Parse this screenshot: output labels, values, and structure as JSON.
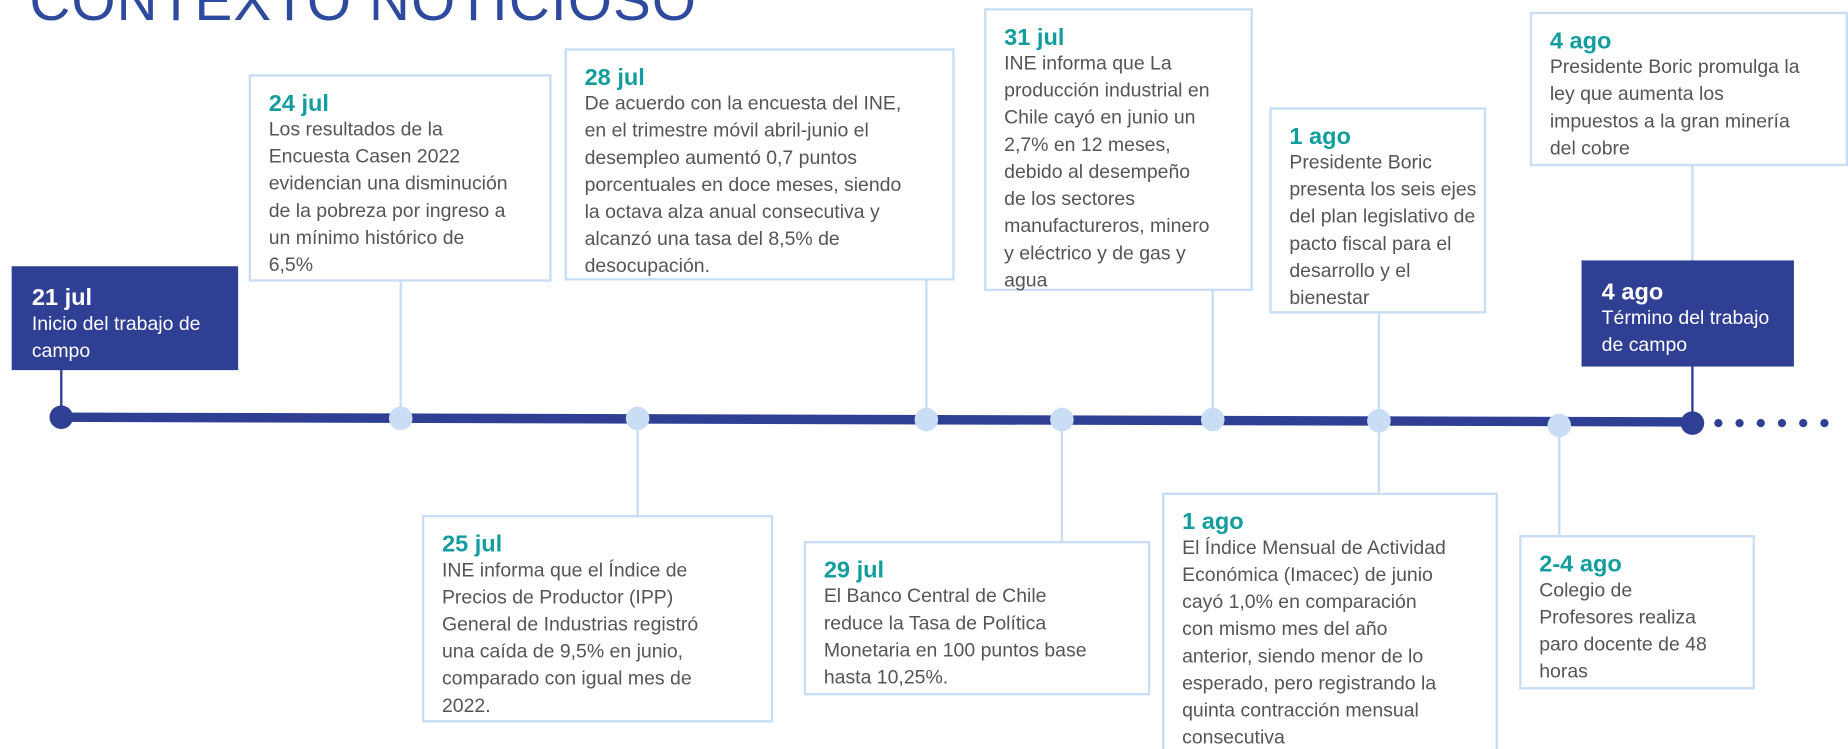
{
  "header": {
    "title": "CONTEXTO NOTICIOSO"
  },
  "events": [
    {
      "date": "21 jul",
      "lines": [
        "Inicio del trabajo de",
        "campo"
      ]
    },
    {
      "date": "24 jul",
      "lines": [
        "Los resultados de la",
        "Encuesta Casen 2022",
        "evidencian una disminución",
        "de la pobreza por ingreso a",
        "un mínimo histórico de",
        "6,5%"
      ]
    },
    {
      "date": "25 jul",
      "lines": [
        "INE informa que el Índice de",
        "Precios de Productor (IPP)",
        "General de Industrias registró",
        "una caída de 9,5% en junio,",
        "comparado con igual mes de",
        "2022."
      ]
    },
    {
      "date": "28 jul",
      "lines": [
        "De acuerdo con la encuesta del INE,",
        "en el trimestre móvil abril-junio el",
        "desempleo aumentó 0,7 puntos",
        "porcentuales en doce meses, siendo",
        "la octava alza anual consecutiva y",
        "alcanzó una tasa del 8,5% de",
        "desocupación."
      ]
    },
    {
      "date": "29 jul",
      "lines": [
        "El Banco Central de Chile",
        "reduce la Tasa de Política",
        "Monetaria en 100 puntos base",
        "hasta 10,25%."
      ]
    },
    {
      "date": "31 jul",
      "lines": [
        "INE informa que La",
        "producción industrial en",
        "Chile cayó en junio un",
        "2,7% en 12 meses,",
        "debido al desempeño",
        "de los sectores",
        "manufactureros, minero",
        "y eléctrico y de gas y",
        "agua"
      ]
    },
    {
      "date": "1 ago",
      "lines": [
        "Presidente Boric",
        "presenta los seis ejes",
        "del plan legislativo de",
        "pacto fiscal para el",
        "desarrollo y el",
        "bienestar"
      ]
    },
    {
      "date": "1 ago",
      "lines": [
        "El Índice Mensual de Actividad",
        "Económica (Imacec) de junio",
        "cayó 1,0% en comparación",
        "con mismo mes del año",
        "anterior, siendo menor de lo",
        "esperado, pero registrando la",
        "quinta contracción mensual",
        "consecutiva"
      ]
    },
    {
      "date": "2-4 ago",
      "lines": [
        "Colegio de",
        "Profesores realiza",
        "paro docente de 48",
        "horas"
      ]
    },
    {
      "date": "4 ago",
      "lines": [
        "Presidente Boric promulga la",
        "ley que aumenta los",
        "impuestos a la gran minería",
        "del cobre"
      ]
    },
    {
      "date": "4 ago",
      "lines": [
        "Término del trabajo",
        "de campo"
      ]
    }
  ]
}
